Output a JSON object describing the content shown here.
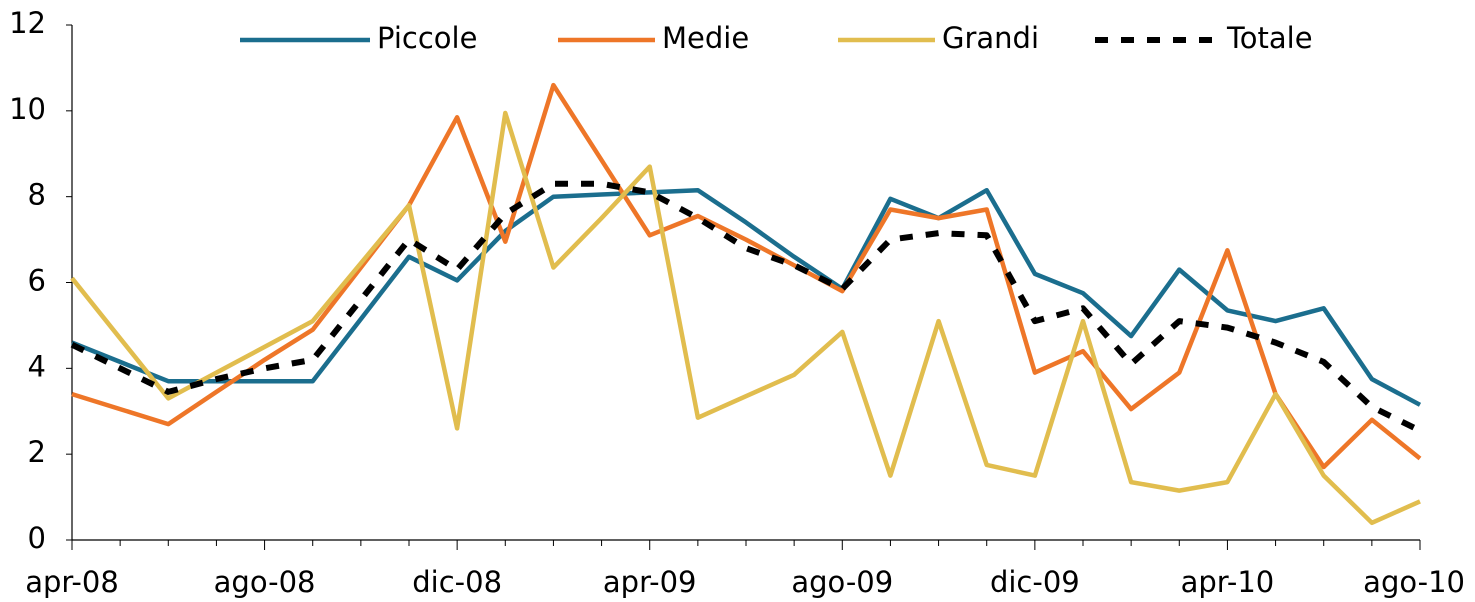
{
  "chart_data": {
    "type": "line",
    "categories": [
      "apr-08",
      null,
      null,
      null,
      "ago-08",
      null,
      null,
      null,
      "dic-08",
      null,
      null,
      null,
      "apr-09",
      null,
      null,
      null,
      "ago-09",
      null,
      null,
      null,
      "dic-09",
      null,
      null,
      null,
      "apr-10",
      null,
      null,
      null,
      "ago-10"
    ],
    "series": [
      {
        "name": "Piccole",
        "color": "#1b6e8e",
        "values": [
          4.6,
          4.15,
          3.7,
          3.7,
          3.7,
          3.7,
          5.15,
          6.6,
          6.05,
          7.2,
          8.0,
          8.05,
          8.1,
          8.15,
          7.4,
          6.6,
          5.85,
          7.95,
          7.5,
          8.15,
          6.2,
          5.75,
          4.75,
          6.3,
          5.35,
          5.1,
          5.4,
          3.75,
          3.15
        ]
      },
      {
        "name": "Medie",
        "color": "#ee7628",
        "values": [
          3.4,
          3.05,
          2.7,
          3.45,
          4.2,
          4.9,
          6.35,
          7.8,
          9.85,
          6.95,
          10.6,
          8.85,
          7.1,
          7.55,
          7.0,
          6.4,
          5.8,
          7.7,
          7.5,
          7.7,
          3.9,
          4.4,
          3.05,
          3.9,
          6.75,
          3.4,
          1.7,
          2.8,
          1.9
        ]
      },
      {
        "name": "Grandi",
        "color": "#e1bd4e",
        "values": [
          6.1,
          4.7,
          3.3,
          3.9,
          4.5,
          5.1,
          6.45,
          7.8,
          2.6,
          9.95,
          6.35,
          7.5,
          8.7,
          2.85,
          3.35,
          3.85,
          4.85,
          1.5,
          5.1,
          1.75,
          1.5,
          5.1,
          1.35,
          1.15,
          1.35,
          3.4,
          1.5,
          0.4,
          0.9
        ]
      },
      {
        "name": "Totale",
        "color": "#000000",
        "dashed": true,
        "values": [
          4.55,
          4.0,
          3.45,
          3.75,
          4.0,
          4.2,
          5.6,
          7.0,
          6.3,
          7.6,
          8.3,
          8.3,
          8.1,
          7.5,
          6.8,
          6.4,
          5.85,
          7.0,
          7.15,
          7.1,
          5.1,
          5.4,
          4.1,
          5.1,
          4.95,
          4.6,
          4.15,
          3.1,
          2.55
        ]
      }
    ],
    "ylim": [
      0,
      12
    ],
    "yticks": [
      0,
      2,
      4,
      6,
      8,
      10,
      12
    ],
    "grid": false,
    "legend": "top"
  }
}
